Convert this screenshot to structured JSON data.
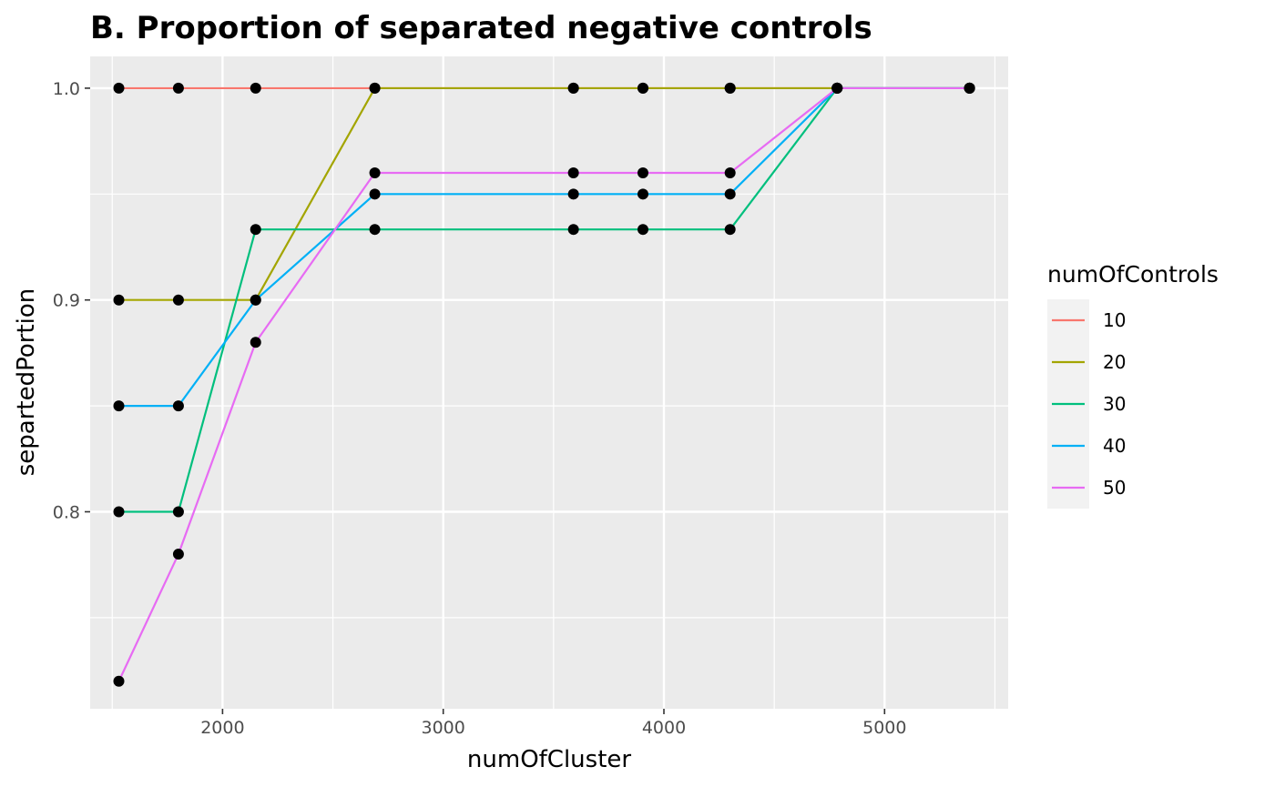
{
  "chart_data": {
    "type": "line",
    "title": "B. Proportion of separated negative controls",
    "xlabel": "numOfCluster",
    "ylabel": "separtedPortion",
    "xlim": [
      1400,
      5560
    ],
    "ylim": [
      0.707,
      1.015
    ],
    "x_ticks": [
      2000,
      3000,
      4000,
      5000
    ],
    "y_ticks": [
      0.8,
      0.9,
      1.0
    ],
    "y_tick_labels": [
      "0.8",
      "0.9",
      "1.0"
    ],
    "grid": true,
    "legend": {
      "title": "numOfControls",
      "placement": "right"
    },
    "point_color": "#000000",
    "series": [
      {
        "name": "10",
        "color": "#F8766D",
        "x": [
          1530,
          1800,
          2150,
          2690,
          3590,
          3905,
          4300,
          4785,
          5385
        ],
        "y": [
          1.0,
          1.0,
          1.0,
          1.0,
          1.0,
          1.0,
          1.0,
          1.0,
          1.0
        ]
      },
      {
        "name": "20",
        "color": "#A3A500",
        "x": [
          1530,
          1800,
          2150,
          2690,
          3590,
          3905,
          4300,
          4785,
          5385
        ],
        "y": [
          0.9,
          0.9,
          0.9,
          1.0,
          1.0,
          1.0,
          1.0,
          1.0,
          1.0
        ]
      },
      {
        "name": "30",
        "color": "#00BF7D",
        "x": [
          1530,
          1800,
          2150,
          2690,
          3590,
          3905,
          4300,
          4785,
          5385
        ],
        "y": [
          0.8,
          0.8,
          0.9333,
          0.9333,
          0.9333,
          0.9333,
          0.9333,
          1.0,
          1.0
        ]
      },
      {
        "name": "40",
        "color": "#00B0F6",
        "x": [
          1530,
          1800,
          2150,
          2690,
          3590,
          3905,
          4300,
          4785,
          5385
        ],
        "y": [
          0.85,
          0.85,
          0.9,
          0.95,
          0.95,
          0.95,
          0.95,
          1.0,
          1.0
        ]
      },
      {
        "name": "50",
        "color": "#E76BF3",
        "x": [
          1530,
          1800,
          2150,
          2690,
          3590,
          3905,
          4300,
          4785,
          5385
        ],
        "y": [
          0.72,
          0.78,
          0.88,
          0.96,
          0.96,
          0.96,
          0.96,
          1.0,
          1.0
        ]
      }
    ]
  }
}
